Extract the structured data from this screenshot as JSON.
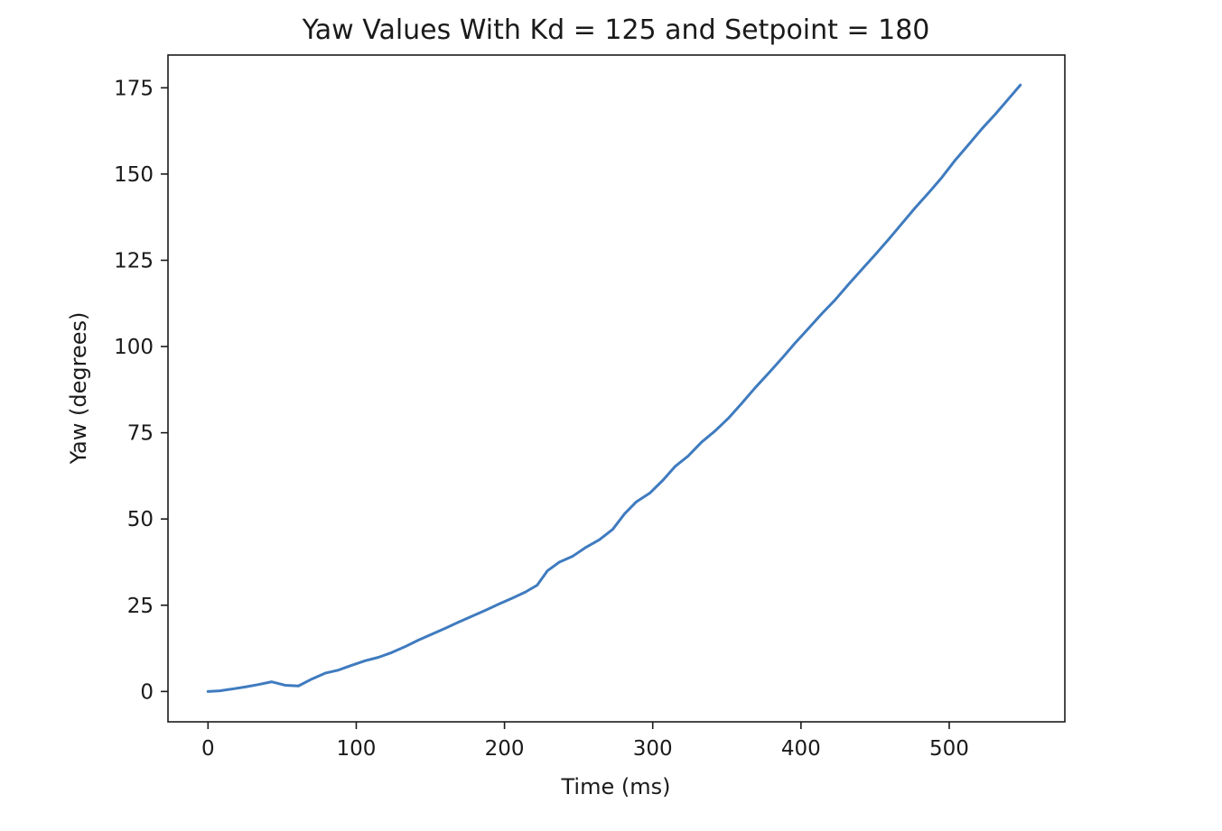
{
  "chart_data": {
    "type": "line",
    "title": "Yaw Values With Kd = 125 and Setpoint = 180",
    "xlabel": "Time (ms)",
    "ylabel": "Yaw (degrees)",
    "xlim": [
      -27,
      578
    ],
    "ylim": [
      -8.8,
      184.5
    ],
    "xticks": [
      0,
      100,
      200,
      300,
      400,
      500
    ],
    "yticks": [
      0,
      25,
      50,
      75,
      100,
      125,
      150,
      175
    ],
    "grid": false,
    "series": [
      {
        "color": "#3f7bbf",
        "x": [
          0,
          8,
          16,
          25,
          34,
          43,
          52,
          61,
          70,
          79,
          88,
          97,
          106,
          115,
          124,
          133,
          142,
          151,
          160,
          169,
          178,
          187,
          196,
          205,
          214,
          222,
          229,
          237,
          246,
          255,
          264,
          273,
          281,
          289,
          298,
          307,
          315,
          324,
          333,
          342,
          351,
          360,
          369,
          378,
          387,
          396,
          405,
          414,
          423,
          432,
          441,
          450,
          459,
          468,
          477,
          486,
          495,
          504,
          513,
          522,
          531,
          540,
          548
        ],
        "y": [
          0.0,
          0.2,
          0.7,
          1.3,
          2.0,
          2.8,
          1.8,
          1.6,
          3.6,
          5.3,
          6.2,
          7.6,
          8.9,
          9.9,
          11.3,
          13.0,
          14.9,
          16.6,
          18.3,
          20.1,
          21.8,
          23.5,
          25.3,
          27.0,
          28.8,
          30.8,
          35.0,
          37.5,
          39.2,
          41.8,
          44.0,
          47.0,
          51.5,
          55.0,
          57.5,
          61.3,
          65.2,
          68.3,
          72.3,
          75.5,
          79.2,
          83.5,
          88.0,
          92.2,
          96.5,
          101.0,
          105.2,
          109.5,
          113.5,
          118.0,
          122.3,
          126.6,
          131.0,
          135.6,
          140.2,
          144.5,
          149.0,
          154.0,
          158.5,
          163.1,
          167.3,
          171.8,
          175.8
        ]
      }
    ]
  }
}
